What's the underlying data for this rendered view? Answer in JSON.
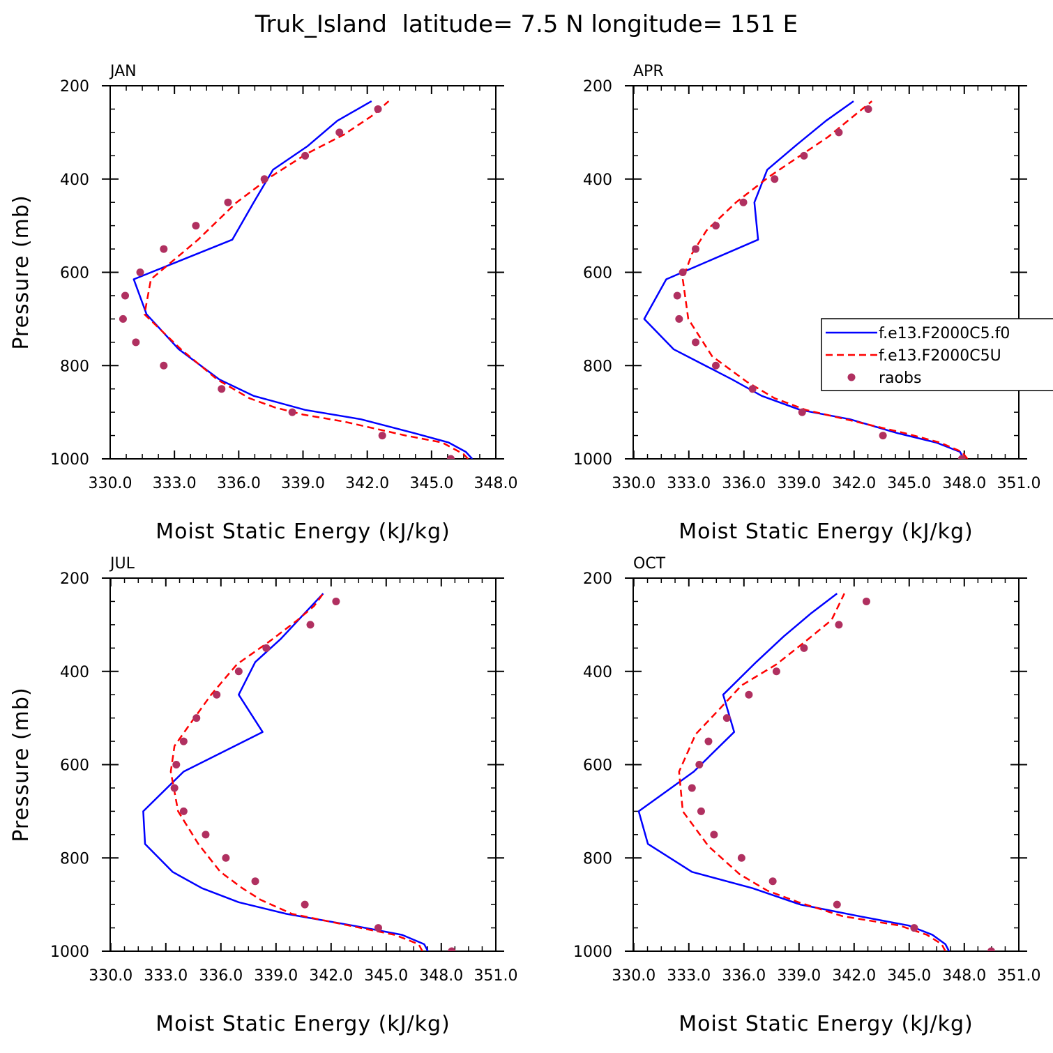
{
  "title": "Truk_Island  latitude= 7.5 N longitude= 151 E",
  "colors": {
    "model1": "#0000ff",
    "model2": "#ff0000",
    "raobs": "#b03060"
  },
  "legend": {
    "placement": "right of APR panel",
    "items": [
      "f.e13.F2000C5.f0",
      "f.e13.F2000C5U",
      "raobs"
    ]
  },
  "chart_data": [
    {
      "type": "line",
      "panel": "JAN",
      "xlabel": "Moist Static Energy (kJ/kg)",
      "ylabel": "Pressure (mb)",
      "xlim": [
        330,
        348
      ],
      "ylim": [
        1000,
        200
      ],
      "xticks": [
        330,
        333,
        336,
        339,
        342,
        345,
        348
      ],
      "xtick_labels": [
        "330.0",
        "333.0",
        "336.0",
        "339.0",
        "342.0",
        "345.0",
        "348.0"
      ],
      "yticks": [
        200,
        400,
        600,
        800,
        1000
      ],
      "ytick_labels": [
        "200",
        "400",
        "600",
        "800",
        "1000"
      ],
      "series": [
        {
          "name": "f.e13.F2000C5.f0",
          "style": "solid",
          "x": [
            346.9,
            346.6,
            345.8,
            344.2,
            341.7,
            339.1,
            336.7,
            335.1,
            333.2,
            331.7,
            331.1,
            335.7,
            336.7,
            337.6,
            339.2,
            340.6,
            342.2
          ],
          "y": [
            1000,
            985,
            965,
            945,
            915,
            895,
            865,
            830,
            765,
            690,
            615,
            530,
            450,
            380,
            330,
            275,
            233
          ]
        },
        {
          "name": "f.e13.F2000C5U",
          "style": "dashed",
          "x": [
            346.7,
            346.5,
            345.5,
            343.8,
            340.9,
            339.0,
            337.7,
            336.5,
            335.0,
            333.3,
            331.6,
            331.9,
            334.1,
            335.9,
            337.5,
            339.2,
            340.9,
            342.2,
            343.0
          ],
          "y": [
            1000,
            990,
            965,
            950,
            920,
            905,
            890,
            870,
            830,
            765,
            690,
            615,
            530,
            450,
            395,
            345,
            305,
            265,
            233
          ]
        },
        {
          "name": "raobs",
          "style": "markers",
          "x": [
            342.5,
            340.7,
            339.1,
            337.2,
            335.5,
            334.0,
            332.5,
            331.4,
            330.7,
            330.6,
            331.2,
            332.5,
            335.2,
            338.5,
            342.7,
            345.9
          ],
          "y": [
            250,
            300,
            350,
            400,
            450,
            500,
            550,
            600,
            650,
            700,
            750,
            800,
            850,
            900,
            950,
            1000
          ]
        }
      ]
    },
    {
      "type": "line",
      "panel": "APR",
      "xlabel": "Moist Static Energy (kJ/kg)",
      "ylabel": "",
      "xlim": [
        330.0,
        351.0
      ],
      "ylim": [
        1000,
        200
      ],
      "xticks": [
        330.03,
        333.03,
        336.03,
        339.03,
        342.03,
        345.03,
        348.03,
        351.0
      ],
      "xtick_labels": [
        "330.0",
        "333.0",
        "336.0",
        "339.0",
        "342.0",
        "345.0",
        "348.0",
        "351.0"
      ],
      "yticks": [
        200,
        400,
        600,
        800,
        1000
      ],
      "ytick_labels": [
        "200",
        "400",
        "600",
        "800",
        "1000"
      ],
      "series": [
        {
          "name": "f.e13.F2000C5.f0",
          "style": "solid",
          "x": [
            348.0,
            347.8,
            346.5,
            344.4,
            341.8,
            339.1,
            337.0,
            335.4,
            332.2,
            330.6,
            331.8,
            336.8,
            336.6,
            337.3,
            338.8,
            340.5,
            342.0
          ],
          "y": [
            1000,
            985,
            965,
            945,
            915,
            895,
            865,
            830,
            765,
            700,
            615,
            530,
            450,
            380,
            330,
            275,
            233
          ]
        },
        {
          "name": "f.e13.F2000C5U",
          "style": "dashed",
          "x": [
            348.2,
            347.9,
            346.7,
            344.8,
            342.1,
            339.4,
            337.7,
            336.2,
            334.3,
            333.0,
            332.7,
            333.2,
            334.0,
            335.6,
            337.4,
            338.9,
            340.6,
            342.0,
            343.0
          ],
          "y": [
            1000,
            985,
            965,
            945,
            920,
            895,
            870,
            835,
            780,
            700,
            615,
            560,
            510,
            450,
            395,
            355,
            310,
            265,
            233
          ]
        },
        {
          "name": "raobs",
          "style": "markers",
          "x": [
            342.8,
            341.2,
            339.3,
            337.7,
            336.0,
            334.5,
            333.4,
            332.7,
            332.4,
            332.5,
            333.4,
            334.5,
            336.5,
            339.2,
            343.6,
            347.9
          ],
          "y": [
            250,
            300,
            350,
            400,
            450,
            500,
            550,
            600,
            650,
            700,
            750,
            800,
            850,
            900,
            950,
            1000
          ]
        }
      ]
    },
    {
      "type": "line",
      "panel": "JUL",
      "xlabel": "Moist Static Energy (kJ/kg)",
      "ylabel": "Pressure (mb)",
      "xlim": [
        330.0,
        351.0
      ],
      "ylim": [
        1000,
        200
      ],
      "xticks": [
        330.03,
        333.03,
        336.03,
        339.03,
        342.03,
        345.03,
        348.03,
        351.0
      ],
      "xtick_labels": [
        "330.0",
        "333.0",
        "336.0",
        "339.0",
        "342.0",
        "345.0",
        "348.0",
        "351.0"
      ],
      "yticks": [
        200,
        400,
        600,
        800,
        1000
      ],
      "ytick_labels": [
        "200",
        "400",
        "600",
        "800",
        "1000"
      ],
      "series": [
        {
          "name": "f.e13.F2000C5.f0",
          "style": "solid",
          "x": [
            347.3,
            347.1,
            345.9,
            343.2,
            339.6,
            337.0,
            335.0,
            333.4,
            331.9,
            331.8,
            334.0,
            338.3,
            337.0,
            337.9,
            339.3,
            340.6,
            341.6
          ],
          "y": [
            1000,
            985,
            965,
            945,
            920,
            895,
            865,
            830,
            770,
            700,
            615,
            530,
            450,
            380,
            330,
            275,
            233
          ]
        },
        {
          "name": "f.e13.F2000C5U",
          "style": "dashed",
          "x": [
            347.0,
            346.8,
            345.5,
            343.0,
            339.9,
            338.2,
            337.2,
            336.0,
            334.8,
            333.7,
            333.3,
            333.5,
            334.4,
            335.5,
            336.9,
            338.7,
            340.2,
            341.1,
            341.6
          ],
          "y": [
            1000,
            985,
            965,
            945,
            920,
            890,
            865,
            830,
            770,
            700,
            615,
            560,
            510,
            450,
            385,
            335,
            290,
            260,
            233
          ]
        },
        {
          "name": "raobs",
          "style": "markers",
          "x": [
            342.3,
            340.9,
            338.5,
            337.0,
            335.8,
            334.7,
            334.0,
            333.6,
            333.5,
            334.0,
            335.2,
            336.3,
            337.9,
            340.6,
            344.6,
            348.6
          ],
          "y": [
            250,
            300,
            350,
            400,
            450,
            500,
            550,
            600,
            650,
            700,
            750,
            800,
            850,
            900,
            950,
            1000
          ]
        }
      ]
    },
    {
      "type": "line",
      "panel": "OCT",
      "xlabel": "Moist Static Energy (kJ/kg)",
      "ylabel": "",
      "xlim": [
        330.0,
        351.0
      ],
      "ylim": [
        1000,
        200
      ],
      "xticks": [
        330.03,
        333.03,
        336.03,
        339.03,
        342.03,
        345.03,
        348.03,
        351.0
      ],
      "xtick_labels": [
        "330.0",
        "333.0",
        "336.0",
        "339.0",
        "342.0",
        "345.0",
        "348.0",
        "351.0"
      ],
      "yticks": [
        200,
        400,
        600,
        800,
        1000
      ],
      "ytick_labels": [
        "200",
        "400",
        "600",
        "800",
        "1000"
      ],
      "series": [
        {
          "name": "f.e13.F2000C5.f0",
          "style": "solid",
          "x": [
            347.2,
            347.0,
            346.3,
            345.0,
            342.3,
            339.1,
            336.5,
            333.2,
            330.8,
            330.3,
            333.3,
            335.5,
            334.9,
            336.7,
            338.2,
            339.7,
            341.1
          ],
          "y": [
            1000,
            985,
            965,
            945,
            925,
            900,
            865,
            830,
            770,
            700,
            615,
            530,
            450,
            380,
            325,
            275,
            233
          ]
        },
        {
          "name": "f.e13.F2000C5U",
          "style": "dashed",
          "x": [
            347.0,
            346.8,
            346.0,
            344.5,
            341.4,
            339.0,
            337.3,
            335.8,
            334.1,
            332.7,
            332.5,
            333.4,
            334.6,
            335.9,
            337.8,
            339.4,
            340.8,
            341.5
          ],
          "y": [
            1000,
            985,
            965,
            945,
            925,
            895,
            870,
            835,
            775,
            700,
            615,
            535,
            485,
            430,
            385,
            335,
            290,
            233
          ]
        },
        {
          "name": "raobs",
          "style": "markers",
          "x": [
            342.7,
            341.2,
            339.3,
            337.8,
            336.3,
            335.1,
            334.1,
            333.6,
            333.2,
            333.7,
            334.4,
            335.9,
            337.6,
            341.1,
            345.3,
            349.5
          ],
          "y": [
            250,
            300,
            350,
            400,
            450,
            500,
            550,
            600,
            650,
            700,
            750,
            800,
            850,
            900,
            950,
            1000
          ]
        }
      ]
    }
  ]
}
